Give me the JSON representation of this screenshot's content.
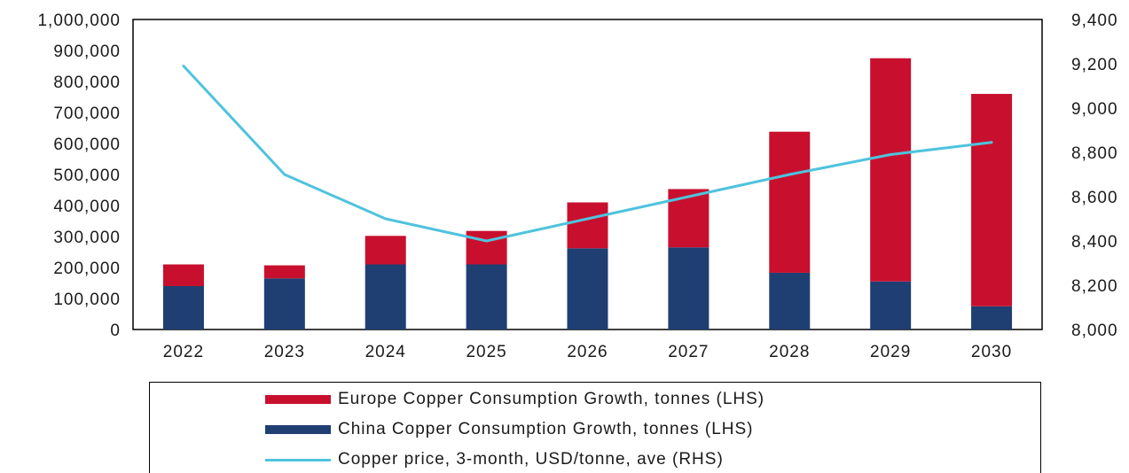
{
  "chart_data": {
    "type": "bar",
    "stacked": true,
    "categories": [
      "2022",
      "2023",
      "2024",
      "2025",
      "2026",
      "2027",
      "2028",
      "2029",
      "2030"
    ],
    "series": [
      {
        "name": "China Copper Consumption  Growth, tonnes (LHS)",
        "type": "bar",
        "axis": "left",
        "color": "#1f3f73",
        "values": [
          140000,
          165000,
          210000,
          210000,
          262000,
          265000,
          183000,
          155000,
          75000
        ]
      },
      {
        "name": "Europe Copper Consumption  Growth, tonnes (LHS)",
        "type": "bar",
        "axis": "left",
        "color": "#c8102e",
        "values": [
          70000,
          42000,
          92000,
          108000,
          148000,
          188000,
          455000,
          720000,
          685000
        ]
      },
      {
        "name": "Copper price, 3-month,  USD/tonne,  ave (RHS)",
        "type": "line",
        "axis": "right",
        "color": "#4fc3dd",
        "values": [
          9190,
          8700,
          8500,
          8400,
          8500,
          8600,
          8700,
          8790,
          8845
        ]
      }
    ],
    "left_axis": {
      "ylim": [
        0,
        1000000
      ],
      "ticks": [
        "0",
        "100,000",
        "200,000",
        "300,000",
        "400,000",
        "500,000",
        "600,000",
        "700,000",
        "800,000",
        "900,000",
        "1,000,000"
      ]
    },
    "right_axis": {
      "ylim": [
        8000,
        9400
      ],
      "ticks": [
        "8,000",
        "8,200",
        "8,400",
        "8,600",
        "8,800",
        "9,000",
        "9,200",
        "9,400"
      ]
    },
    "legend_position": "bottom",
    "legend_order": [
      1,
      0,
      2
    ],
    "grid": false
  }
}
